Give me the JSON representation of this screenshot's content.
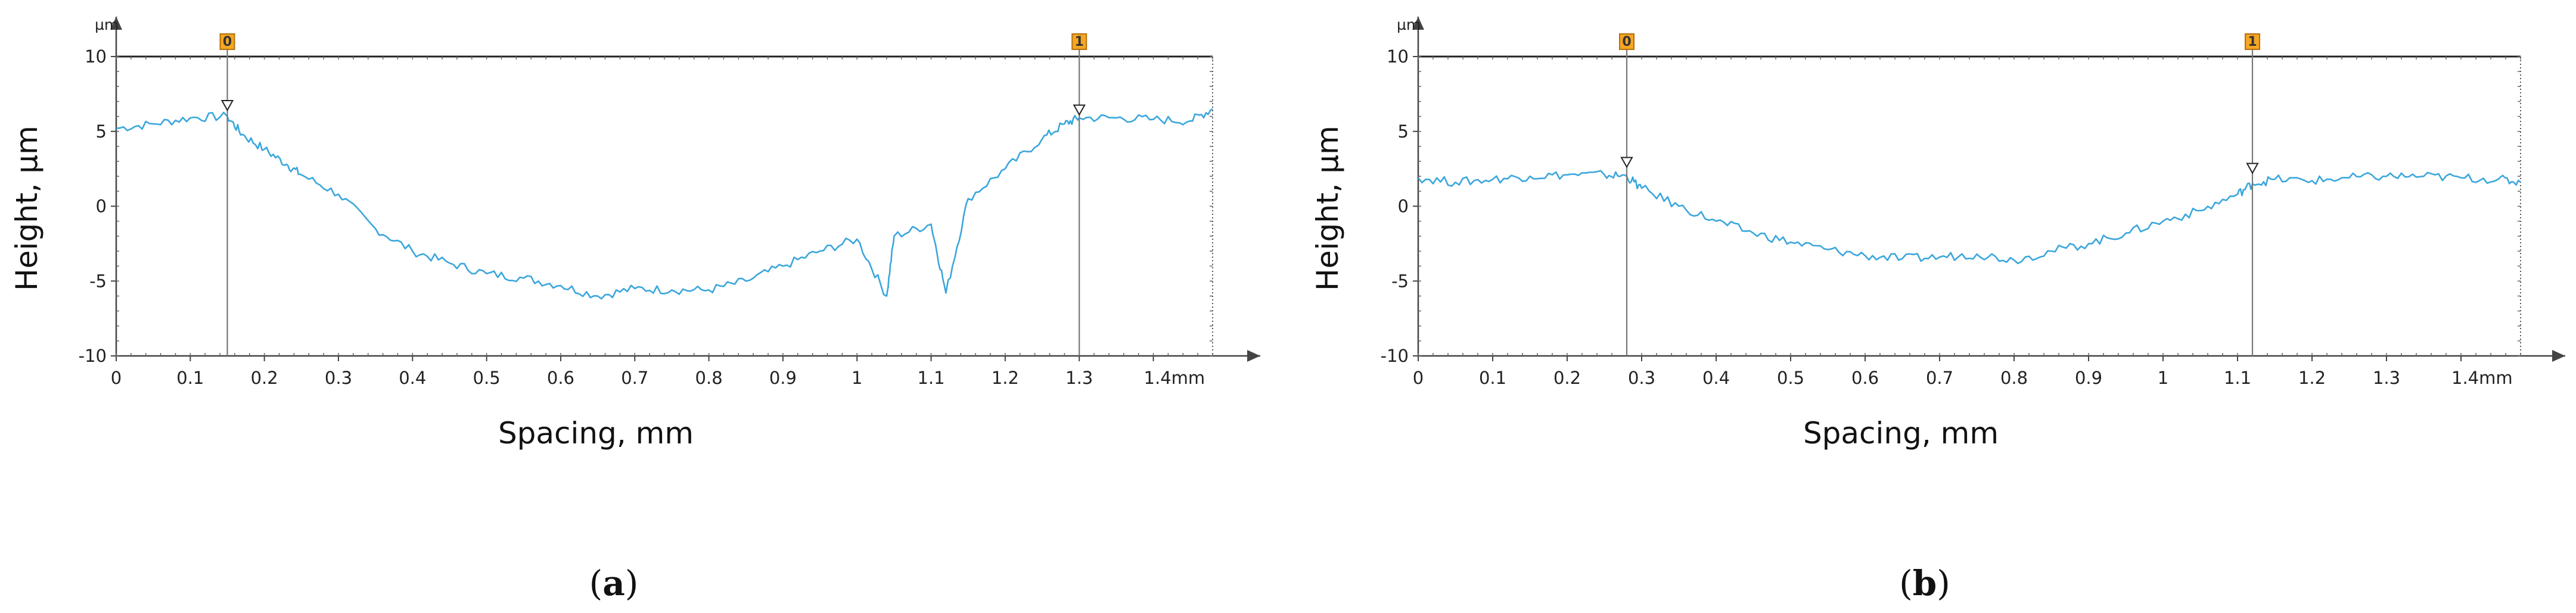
{
  "chart_data": [
    {
      "type": "line",
      "caption_letter": "a",
      "xlabel": "Spacing, mm",
      "ylabel": "Height, µm",
      "y_unit_label": "µm",
      "x_unit_label": "mm",
      "xlim": [
        0,
        1.48
      ],
      "ylim": [
        -10,
        10
      ],
      "x_ticks": [
        0,
        0.1,
        0.2,
        0.3,
        0.4,
        0.5,
        0.6,
        0.7,
        0.8,
        0.9,
        1,
        1.1,
        1.2,
        1.3,
        1.4
      ],
      "x_tick_labels": [
        "0",
        "0.1",
        "0.2",
        "0.3",
        "0.4",
        "0.5",
        "0.6",
        "0.7",
        "0.8",
        "0.9",
        "1",
        "1.1",
        "1.2",
        "1.3",
        "1.4mm"
      ],
      "y_ticks": [
        -10,
        -5,
        0,
        5,
        10
      ],
      "y_tick_labels": [
        "-10",
        "-5",
        "0",
        "5",
        "10"
      ],
      "line_color": "#3aa6dc",
      "markers": [
        {
          "label": "0",
          "x": 0.15,
          "y": 6.5
        },
        {
          "label": "1",
          "x": 1.3,
          "y": 6.2
        }
      ],
      "series": [
        {
          "x": [
            0,
            0.05,
            0.1,
            0.15,
            0.17,
            0.2,
            0.23,
            0.25,
            0.3,
            0.35,
            0.4,
            0.45,
            0.5,
            0.55,
            0.6,
            0.65,
            0.7,
            0.75,
            0.8,
            0.85,
            0.9,
            0.95,
            1.0,
            1.04,
            1.05,
            1.1,
            1.12,
            1.15,
            1.2,
            1.25,
            1.28,
            1.3,
            1.35,
            1.4,
            1.45,
            1.48
          ],
          "y": [
            5.2,
            5.5,
            5.9,
            6.0,
            4.8,
            3.8,
            2.8,
            2.1,
            0.8,
            -1.5,
            -3.0,
            -3.8,
            -4.5,
            -4.8,
            -5.3,
            -6.0,
            -5.5,
            -5.6,
            -5.6,
            -5.0,
            -4.0,
            -3.0,
            -2.2,
            -6.0,
            -2.0,
            -1.2,
            -5.8,
            0.5,
            2.5,
            4.5,
            5.5,
            5.9,
            5.9,
            5.8,
            5.7,
            6.5
          ]
        }
      ]
    },
    {
      "type": "line",
      "caption_letter": "b",
      "xlabel": "Spacing, mm",
      "ylabel": "Height, µm",
      "y_unit_label": "µm",
      "x_unit_label": "mm",
      "xlim": [
        0,
        1.48
      ],
      "ylim": [
        -10,
        10
      ],
      "x_ticks": [
        0,
        0.1,
        0.2,
        0.3,
        0.4,
        0.5,
        0.6,
        0.7,
        0.8,
        0.9,
        1,
        1.1,
        1.2,
        1.3,
        1.4
      ],
      "x_tick_labels": [
        "0",
        "0.1",
        "0.2",
        "0.3",
        "0.4",
        "0.5",
        "0.6",
        "0.7",
        "0.8",
        "0.9",
        "1",
        "1.1",
        "1.2",
        "1.3",
        "1.4mm"
      ],
      "y_ticks": [
        -10,
        -5,
        0,
        5,
        10
      ],
      "y_tick_labels": [
        "-10",
        "-5",
        "0",
        "5",
        "10"
      ],
      "line_color": "#3aa6dc",
      "markers": [
        {
          "label": "0",
          "x": 0.28,
          "y": 2.7
        },
        {
          "label": "1",
          "x": 1.12,
          "y": 2.3
        }
      ],
      "series": [
        {
          "x": [
            0,
            0.05,
            0.1,
            0.15,
            0.2,
            0.25,
            0.28,
            0.3,
            0.35,
            0.4,
            0.45,
            0.5,
            0.55,
            0.6,
            0.65,
            0.7,
            0.75,
            0.8,
            0.85,
            0.9,
            0.95,
            1.0,
            1.05,
            1.1,
            1.12,
            1.15,
            1.2,
            1.25,
            1.3,
            1.35,
            1.4,
            1.45,
            1.48
          ],
          "y": [
            1.9,
            1.6,
            1.8,
            2.0,
            2.1,
            2.1,
            2.0,
            1.2,
            0.0,
            -1.0,
            -1.8,
            -2.4,
            -2.9,
            -3.3,
            -3.5,
            -3.4,
            -3.2,
            -3.6,
            -3.0,
            -2.5,
            -1.8,
            -1.0,
            -0.3,
            0.8,
            1.5,
            1.8,
            1.7,
            1.9,
            2.0,
            2.0,
            1.9,
            1.8,
            1.6
          ]
        }
      ]
    }
  ]
}
